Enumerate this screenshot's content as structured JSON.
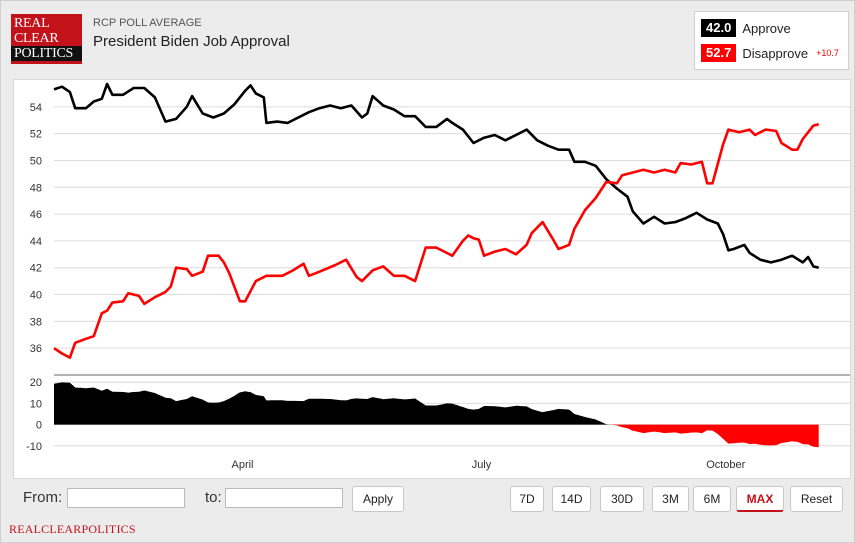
{
  "header": {
    "logo_lines": [
      "REAL",
      "CLEAR",
      "POLITICS"
    ],
    "kicker": "RCP POLL AVERAGE",
    "title": "President Biden Job Approval"
  },
  "legend": {
    "approve": {
      "value": "42.0",
      "label": "Approve",
      "color": "#000000"
    },
    "disapprove": {
      "value": "52.7",
      "label": "Disapprove",
      "color": "#ff0000",
      "spread": "+10.7"
    }
  },
  "controls": {
    "from_label": "From:",
    "to_label": "to:",
    "from_value": "",
    "to_value": "",
    "apply_label": "Apply",
    "ranges": [
      "7D",
      "14D",
      "30D",
      "3M",
      "6M",
      "MAX"
    ],
    "active_range": "MAX",
    "reset_label": "Reset"
  },
  "footer": {
    "brand": "REALCLEARPOLITICS"
  },
  "chart_data": [
    {
      "type": "line",
      "ylim": [
        34,
        56
      ],
      "y_ticks": [
        36,
        38,
        40,
        42,
        44,
        46,
        48,
        50,
        52,
        54
      ],
      "x_ticks": [
        "April",
        "July",
        "October"
      ],
      "x_tick_days": [
        71,
        161,
        253
      ],
      "xlim_days": [
        0,
        290
      ],
      "grid": true,
      "series": [
        {
          "name": "Approve",
          "color": "#000000",
          "points": [
            [
              0,
              55.3
            ],
            [
              3,
              55.5
            ],
            [
              6,
              55.1
            ],
            [
              8,
              53.9
            ],
            [
              12,
              53.9
            ],
            [
              15,
              54.4
            ],
            [
              18,
              54.6
            ],
            [
              20,
              55.7
            ],
            [
              22,
              54.9
            ],
            [
              26,
              54.9
            ],
            [
              30,
              55.4
            ],
            [
              34,
              55.4
            ],
            [
              38,
              54.7
            ],
            [
              42,
              52.9
            ],
            [
              46,
              53.1
            ],
            [
              50,
              54.0
            ],
            [
              52,
              54.8
            ],
            [
              56,
              53.5
            ],
            [
              60,
              53.2
            ],
            [
              64,
              53.5
            ],
            [
              68,
              54.2
            ],
            [
              72,
              55.2
            ],
            [
              74,
              55.6
            ],
            [
              76,
              55.0
            ],
            [
              79,
              54.7
            ],
            [
              80,
              52.8
            ],
            [
              84,
              52.9
            ],
            [
              88,
              52.8
            ],
            [
              92,
              53.2
            ],
            [
              96,
              53.6
            ],
            [
              100,
              53.9
            ],
            [
              104,
              54.1
            ],
            [
              108,
              53.9
            ],
            [
              112,
              54.1
            ],
            [
              116,
              53.2
            ],
            [
              118,
              53.5
            ],
            [
              120,
              54.8
            ],
            [
              124,
              54.1
            ],
            [
              128,
              53.8
            ],
            [
              132,
              53.3
            ],
            [
              136,
              53.3
            ],
            [
              140,
              52.5
            ],
            [
              144,
              52.5
            ],
            [
              148,
              53.1
            ],
            [
              150,
              52.8
            ],
            [
              154,
              52.3
            ],
            [
              158,
              51.3
            ],
            [
              162,
              51.7
            ],
            [
              166,
              51.9
            ],
            [
              170,
              51.5
            ],
            [
              174,
              51.9
            ],
            [
              178,
              52.3
            ],
            [
              182,
              51.5
            ],
            [
              186,
              51.1
            ],
            [
              190,
              50.8
            ],
            [
              194,
              50.8
            ],
            [
              196,
              49.9
            ],
            [
              200,
              49.9
            ],
            [
              204,
              49.6
            ],
            [
              208,
              48.6
            ],
            [
              212,
              47.9
            ],
            [
              216,
              47.3
            ],
            [
              218,
              46.2
            ],
            [
              222,
              45.3
            ],
            [
              226,
              45.8
            ],
            [
              230,
              45.3
            ],
            [
              234,
              45.4
            ],
            [
              238,
              45.7
            ],
            [
              242,
              46.1
            ],
            [
              246,
              45.6
            ],
            [
              250,
              45.3
            ],
            [
              252,
              44.5
            ],
            [
              254,
              43.3
            ],
            [
              256,
              43.4
            ],
            [
              260,
              43.7
            ],
            [
              262,
              43.1
            ],
            [
              266,
              42.6
            ],
            [
              270,
              42.4
            ],
            [
              274,
              42.6
            ],
            [
              278,
              42.9
            ],
            [
              282,
              42.4
            ],
            [
              284,
              42.8
            ],
            [
              286,
              42.1
            ],
            [
              288,
              42.0
            ]
          ]
        },
        {
          "name": "Disapprove",
          "color": "#ff0000",
          "points": [
            [
              0,
              36.0
            ],
            [
              3,
              35.6
            ],
            [
              6,
              35.3
            ],
            [
              8,
              36.4
            ],
            [
              12,
              36.7
            ],
            [
              15,
              36.9
            ],
            [
              18,
              38.6
            ],
            [
              20,
              38.8
            ],
            [
              22,
              39.4
            ],
            [
              26,
              39.5
            ],
            [
              28,
              40.1
            ],
            [
              32,
              39.9
            ],
            [
              34,
              39.3
            ],
            [
              38,
              39.8
            ],
            [
              42,
              40.2
            ],
            [
              44,
              40.6
            ],
            [
              46,
              42.0
            ],
            [
              50,
              41.9
            ],
            [
              52,
              41.4
            ],
            [
              56,
              41.7
            ],
            [
              58,
              42.9
            ],
            [
              62,
              42.9
            ],
            [
              64,
              42.4
            ],
            [
              66,
              41.6
            ],
            [
              70,
              39.5
            ],
            [
              72,
              39.5
            ],
            [
              76,
              41.0
            ],
            [
              80,
              41.4
            ],
            [
              86,
              41.4
            ],
            [
              90,
              41.8
            ],
            [
              94,
              42.3
            ],
            [
              96,
              41.4
            ],
            [
              100,
              41.7
            ],
            [
              106,
              42.2
            ],
            [
              110,
              42.6
            ],
            [
              114,
              41.3
            ],
            [
              116,
              41.0
            ],
            [
              120,
              41.8
            ],
            [
              124,
              42.1
            ],
            [
              128,
              41.4
            ],
            [
              132,
              41.4
            ],
            [
              136,
              41.0
            ],
            [
              140,
              43.5
            ],
            [
              144,
              43.5
            ],
            [
              148,
              43.1
            ],
            [
              150,
              42.9
            ],
            [
              154,
              44.0
            ],
            [
              156,
              44.4
            ],
            [
              158,
              44.2
            ],
            [
              160,
              44.1
            ],
            [
              162,
              42.9
            ],
            [
              166,
              43.2
            ],
            [
              170,
              43.4
            ],
            [
              174,
              43.0
            ],
            [
              178,
              43.7
            ],
            [
              180,
              44.6
            ],
            [
              184,
              45.4
            ],
            [
              188,
              44.1
            ],
            [
              190,
              43.4
            ],
            [
              194,
              43.7
            ],
            [
              196,
              44.9
            ],
            [
              200,
              46.3
            ],
            [
              204,
              47.2
            ],
            [
              208,
              48.4
            ],
            [
              212,
              48.3
            ],
            [
              214,
              48.9
            ],
            [
              218,
              49.1
            ],
            [
              222,
              49.3
            ],
            [
              226,
              49.1
            ],
            [
              230,
              49.3
            ],
            [
              234,
              49.1
            ],
            [
              236,
              49.8
            ],
            [
              240,
              49.7
            ],
            [
              244,
              49.9
            ],
            [
              246,
              48.3
            ],
            [
              248,
              48.3
            ],
            [
              252,
              51.2
            ],
            [
              254,
              52.3
            ],
            [
              258,
              52.1
            ],
            [
              262,
              52.3
            ],
            [
              264,
              51.9
            ],
            [
              268,
              52.3
            ],
            [
              272,
              52.2
            ],
            [
              274,
              51.3
            ],
            [
              278,
              50.8
            ],
            [
              280,
              50.8
            ],
            [
              282,
              51.6
            ],
            [
              284,
              52.1
            ],
            [
              286,
              52.6
            ],
            [
              288,
              52.7
            ]
          ]
        }
      ]
    },
    {
      "type": "area",
      "name": "Spread",
      "ylim": [
        -12,
        22
      ],
      "y_ticks": [
        20,
        10,
        0,
        -10
      ],
      "grid": true,
      "positive_color": "#000000",
      "negative_color": "#ff0000",
      "values_from": "Approve minus Disapprove"
    }
  ]
}
